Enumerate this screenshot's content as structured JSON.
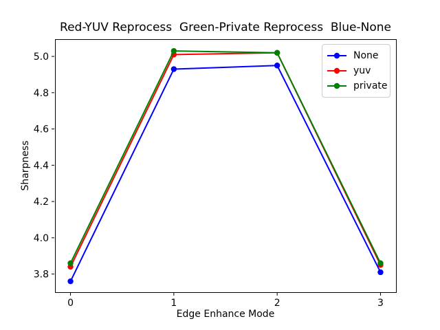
{
  "chart_data": {
    "type": "line",
    "title": "Red-YUV Reprocess  Green-Private Reprocess  Blue-None",
    "xlabel": "Edge Enhance Mode",
    "ylabel": "Sharpness",
    "x": [
      0,
      1,
      2,
      3
    ],
    "xtick_labels": [
      "0",
      "1",
      "2",
      "3"
    ],
    "ytick_labels": [
      "3.8",
      "4.0",
      "4.2",
      "4.4",
      "4.6",
      "4.8",
      "5.0"
    ],
    "xlim": [
      -0.15,
      3.15
    ],
    "ylim": [
      3.7,
      5.095
    ],
    "grid": false,
    "legend_position": "upper right",
    "series": [
      {
        "name": "None",
        "color": "#0000ff",
        "marker": "circle",
        "values": [
          3.76,
          4.93,
          4.95,
          3.81
        ]
      },
      {
        "name": "yuv",
        "color": "#ff0000",
        "marker": "circle",
        "values": [
          3.84,
          5.01,
          5.02,
          3.85
        ]
      },
      {
        "name": "private",
        "color": "#008000",
        "marker": "circle",
        "values": [
          3.86,
          5.03,
          5.02,
          3.86
        ]
      }
    ]
  }
}
